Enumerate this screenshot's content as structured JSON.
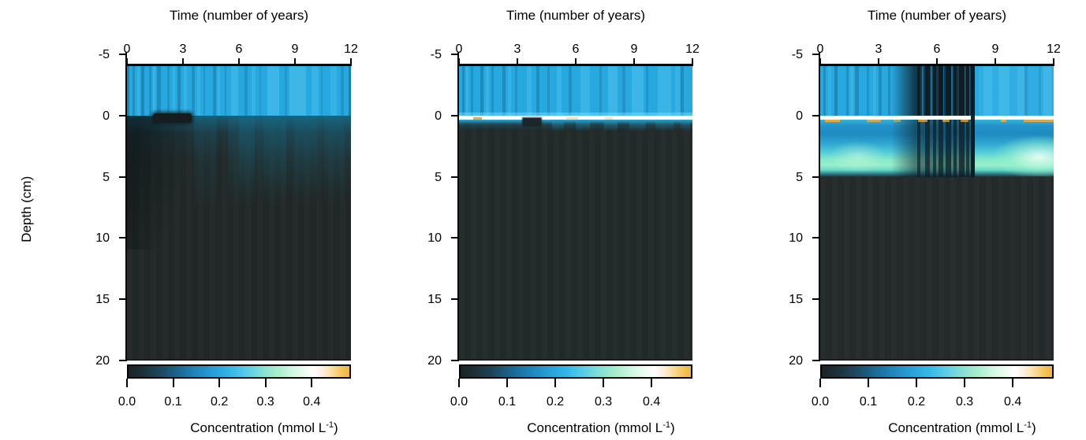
{
  "figure": {
    "background": "#ffffff",
    "text_color": "#000000",
    "n_panels": 3
  },
  "chart_data": {
    "type": "heatmap",
    "layout_note": "three depth-vs-time concentration heatmaps sharing one colormap",
    "x_axis": {
      "title": "Time (number of years)",
      "tick_labels": [
        "0",
        "3",
        "6",
        "9",
        "12"
      ],
      "tick_values": [
        0,
        3,
        6,
        9,
        12
      ],
      "range": [
        0,
        12
      ],
      "position": "top"
    },
    "y_axis": {
      "title": "Depth (cm)",
      "tick_labels": [
        "-5",
        "0",
        "5",
        "10",
        "15",
        "20"
      ],
      "tick_values": [
        -5,
        0,
        5,
        10,
        15,
        20
      ],
      "range": [
        -5,
        20
      ],
      "image_depth_range": [
        -4,
        20
      ],
      "position": "left"
    },
    "colorbar": {
      "label_prefix": "Concentration (mmol L",
      "label_sup": "-1",
      "label_suffix": ")",
      "tick_labels": [
        "0.0",
        "0.1",
        "0.2",
        "0.3",
        "0.4"
      ],
      "tick_values": [
        0.0,
        0.1,
        0.2,
        0.3,
        0.4
      ],
      "range": [
        0.0,
        0.485
      ],
      "stops": [
        {
          "pos": 0,
          "color": "#1a2424"
        },
        {
          "pos": 7,
          "color": "#1c323b"
        },
        {
          "pos": 15,
          "color": "#1c4a5f"
        },
        {
          "pos": 23,
          "color": "#1a6a94"
        },
        {
          "pos": 31,
          "color": "#1f87bd"
        },
        {
          "pos": 39,
          "color": "#27a2d8"
        },
        {
          "pos": 46,
          "color": "#31b7e8"
        },
        {
          "pos": 53,
          "color": "#55cce8"
        },
        {
          "pos": 60,
          "color": "#7fdfd6"
        },
        {
          "pos": 67,
          "color": "#a5edcb"
        },
        {
          "pos": 74,
          "color": "#cdf8e2"
        },
        {
          "pos": 80,
          "color": "#eefcf0"
        },
        {
          "pos": 84,
          "color": "#ffffff"
        },
        {
          "pos": 88,
          "color": "#fdeedd"
        },
        {
          "pos": 92,
          "color": "#fbdf9e"
        },
        {
          "pos": 96,
          "color": "#f6c85f"
        },
        {
          "pos": 100,
          "color": "#efb73d"
        }
      ]
    },
    "panels": [
      {
        "name": "left-panel",
        "description": "Water column (-4 to 0 cm) ~0.2 mmol/L with time-varying vertical banding; sediment near 0-0.05 mmol/L, mild teal enrichment in top 2-3 cm growing with time; low-concentration dark wedge below the interface during years ~1-4.",
        "estimated_values": {
          "water_column": 0.2,
          "sediment_surface": 0.06,
          "deep_sediment": 0.02
        },
        "water": {
          "base_color": "#27a9e0",
          "dark_stripe_color": "#0a3c5c",
          "light_stripe_color": "#7fdcf7",
          "dark_stripes": [
            [
              0.0,
              0.012,
              0.35
            ],
            [
              0.025,
              0.01,
              0.22
            ],
            [
              0.065,
              0.014,
              0.3
            ],
            [
              0.1,
              0.01,
              0.22
            ],
            [
              0.135,
              0.016,
              0.28
            ],
            [
              0.18,
              0.01,
              0.2
            ],
            [
              0.225,
              0.014,
              0.28
            ],
            [
              0.29,
              0.012,
              0.22
            ],
            [
              0.34,
              0.01,
              0.18
            ],
            [
              0.385,
              0.014,
              0.25
            ],
            [
              0.435,
              0.01,
              0.18
            ],
            [
              0.525,
              0.012,
              0.2
            ],
            [
              0.59,
              0.01,
              0.15
            ],
            [
              0.705,
              0.01,
              0.15
            ],
            [
              0.865,
              0.01,
              0.15
            ],
            [
              0.955,
              0.012,
              0.18
            ],
            [
              0.988,
              0.012,
              0.38
            ]
          ],
          "light_stripes": [
            [
              0.045,
              0.012,
              0.2
            ],
            [
              0.115,
              0.012,
              0.22
            ],
            [
              0.205,
              0.01,
              0.18
            ],
            [
              0.255,
              0.014,
              0.2
            ],
            [
              0.315,
              0.012,
              0.18
            ],
            [
              0.405,
              0.012,
              0.2
            ],
            [
              0.465,
              0.03,
              0.22
            ],
            [
              0.555,
              0.02,
              0.18
            ],
            [
              0.625,
              0.055,
              0.25
            ],
            [
              0.725,
              0.075,
              0.28
            ],
            [
              0.825,
              0.03,
              0.2
            ],
            [
              0.91,
              0.025,
              0.18
            ]
          ]
        },
        "sediment": {
          "base_color": "#212827",
          "top_glow": true
        },
        "features": {
          "surface_white_line": false,
          "dark_patch": [
            0.115,
            0.175
          ],
          "wedge": true,
          "glow_columns": [
            [
              0.3,
              0.1,
              0.22
            ],
            [
              0.45,
              0.12,
              0.3
            ],
            [
              0.61,
              0.1,
              0.26
            ],
            [
              0.75,
              0.1,
              0.22
            ],
            [
              0.88,
              0.09,
              0.18
            ]
          ]
        }
      },
      {
        "name": "middle-panel",
        "description": "Water column ~0.2 mmol/L; thin white high-concentration layer (~0.4) right at the sediment surface with an orange hotspot (~0.46) near year 0.8; sediment below ~0.5 cm uniformly low (~0.02). Small low-concentration notch in the surface layer near years 3-3.8.",
        "estimated_values": {
          "water_column": 0.2,
          "surface_layer": 0.4,
          "deep_sediment": 0.02
        },
        "water": {
          "base_color": "#27a9e0",
          "dark_stripe_color": "#0a3c5c",
          "light_stripe_color": "#7fdcf7",
          "dark_stripes": [
            [
              0.012,
              0.012,
              0.28
            ],
            [
              0.05,
              0.01,
              0.22
            ],
            [
              0.09,
              0.016,
              0.3
            ],
            [
              0.14,
              0.01,
              0.22
            ],
            [
              0.185,
              0.014,
              0.28
            ],
            [
              0.24,
              0.01,
              0.2
            ],
            [
              0.33,
              0.014,
              0.25
            ],
            [
              0.38,
              0.01,
              0.2
            ],
            [
              0.47,
              0.012,
              0.22
            ],
            [
              0.6,
              0.01,
              0.18
            ],
            [
              0.7,
              0.012,
              0.2
            ],
            [
              0.8,
              0.01,
              0.18
            ],
            [
              0.95,
              0.014,
              0.25
            ]
          ],
          "light_stripes": [
            [
              0.03,
              0.012,
              0.18
            ],
            [
              0.115,
              0.012,
              0.2
            ],
            [
              0.21,
              0.012,
              0.18
            ],
            [
              0.29,
              0.02,
              0.2
            ],
            [
              0.42,
              0.02,
              0.22
            ],
            [
              0.52,
              0.04,
              0.22
            ],
            [
              0.64,
              0.04,
              0.25
            ],
            [
              0.74,
              0.05,
              0.25
            ],
            [
              0.85,
              0.06,
              0.22
            ],
            [
              0.925,
              0.02,
              0.18
            ]
          ]
        },
        "sediment": {
          "base_color": "#232a2a",
          "top_glow": true
        },
        "features": {
          "surface_white_line": true,
          "orange_dashes": [
            [
              0.062,
              0.035,
              0.95
            ],
            [
              0.46,
              0.05,
              0.35
            ],
            [
              0.62,
              0.04,
              0.3
            ]
          ],
          "notch": [
            0.275,
            0.075
          ],
          "under_line_glows": [
            [
              0.4,
              0.05,
              0.55
            ],
            [
              0.5,
              0.06,
              0.5
            ],
            [
              0.62,
              0.06,
              0.55
            ],
            [
              0.73,
              0.07,
              0.5
            ],
            [
              0.84,
              0.08,
              0.45
            ],
            [
              0.95,
              0.04,
              0.4
            ]
          ]
        }
      },
      {
        "name": "right-panel",
        "description": "Water column ~0.2 mmol/L except a low-concentration period (years ~4-8, down to ~0.02 in black stripes); white surface layer (~0.4) with orange spots (~0.46); subsurface band 0.5-5 cm at 0.25-0.35 mmol/L peaking near 3.5-4.5 cm depth, brightest (~0.42) in years 9-12; sediment below 5 cm ~0.02.",
        "estimated_values": {
          "water_column": 0.2,
          "water_dark_period": 0.05,
          "surface_layer": 0.4,
          "subsurface_band_peak": 0.35,
          "subsurface_band_late_peak": 0.42,
          "deep_sediment": 0.02
        },
        "water": {
          "base_color": "#27a9e0",
          "dark_stripe_color": "#0a3c5c",
          "light_stripe_color": "#7fdcf7",
          "dark_stripes": [
            [
              0.012,
              0.012,
              0.25
            ],
            [
              0.06,
              0.014,
              0.3
            ],
            [
              0.11,
              0.01,
              0.22
            ],
            [
              0.15,
              0.014,
              0.28
            ],
            [
              0.2,
              0.01,
              0.2
            ],
            [
              0.25,
              0.012,
              0.25
            ],
            [
              0.29,
              0.01,
              0.25
            ],
            [
              0.875,
              0.012,
              0.18
            ],
            [
              0.935,
              0.01,
              0.15
            ]
          ],
          "light_stripes": [
            [
              0.035,
              0.012,
              0.18
            ],
            [
              0.13,
              0.012,
              0.2
            ],
            [
              0.225,
              0.014,
              0.18
            ],
            [
              0.68,
              0.32,
              0.1
            ],
            [
              0.7,
              0.035,
              0.2
            ],
            [
              0.765,
              0.045,
              0.22
            ],
            [
              0.845,
              0.03,
              0.18
            ],
            [
              0.955,
              0.035,
              0.2
            ]
          ]
        },
        "sediment": {
          "base_color": "#242b2a",
          "top_glow": false
        },
        "features": {
          "surface_white_line": true,
          "orange_dashes": [
            [
              0.02,
              0.065,
              0.95
            ],
            [
              0.2,
              0.06,
              0.8
            ],
            [
              0.315,
              0.03,
              0.6
            ],
            [
              0.42,
              0.04,
              0.75
            ],
            [
              0.525,
              0.03,
              0.75
            ],
            [
              0.6,
              0.035,
              0.75
            ],
            [
              0.772,
              0.025,
              0.9
            ],
            [
              0.87,
              0.13,
              0.85
            ]
          ],
          "band": true,
          "dark_period": {
            "ramp_start": 0.305,
            "ramp_width": 0.1,
            "core_start": 0.405,
            "end": 0.663,
            "black_stripes": [
              [
                0.415,
                0.015,
                0.85
              ],
              [
                0.448,
                0.02,
                0.9
              ],
              [
                0.484,
                0.012,
                0.85
              ],
              [
                0.508,
                0.018,
                0.9
              ],
              [
                0.538,
                0.022,
                0.92
              ],
              [
                0.57,
                0.014,
                0.88
              ],
              [
                0.594,
                0.024,
                0.92
              ],
              [
                0.625,
                0.012,
                0.85
              ]
            ],
            "crossing_stripe": [
              0.645,
              0.017,
              0.95
            ],
            "blue_stripes": [
              [
                0.435,
                0.008,
                0.6
              ],
              [
                0.472,
                0.008,
                0.6
              ],
              [
                0.522,
                0.008,
                0.55
              ],
              [
                0.56,
                0.008,
                0.55
              ],
              [
                0.613,
                0.007,
                0.5
              ],
              [
                0.637,
                0.006,
                0.5
              ]
            ]
          }
        }
      }
    ]
  }
}
